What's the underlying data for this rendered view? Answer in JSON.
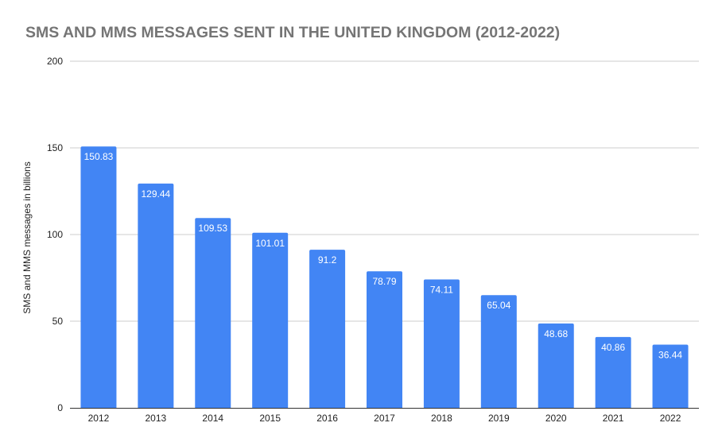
{
  "chart_data": {
    "type": "bar",
    "title": "SMS AND MMS MESSAGES SENT IN THE UNITED KINGDOM (2012-2022)",
    "xlabel": "",
    "ylabel": "SMS and MMS messages in billions",
    "categories": [
      "2012",
      "2013",
      "2014",
      "2015",
      "2016",
      "2017",
      "2018",
      "2019",
      "2020",
      "2021",
      "2022"
    ],
    "values": [
      150.83,
      129.44,
      109.53,
      101.01,
      91.2,
      78.79,
      74.11,
      65.04,
      48.68,
      40.86,
      36.44
    ],
    "data_labels": [
      "150.83",
      "129.44",
      "109.53",
      "101.01",
      "91.2",
      "78.79",
      "74.11",
      "65.04",
      "48.68",
      "40.86",
      "36.44"
    ],
    "ylim": [
      0,
      200
    ],
    "yticks": [
      0,
      50,
      100,
      150,
      200
    ],
    "grid": true,
    "legend": "none",
    "bar_color": "#4285f4",
    "grid_color": "#cccccc",
    "title_color": "#757575"
  }
}
